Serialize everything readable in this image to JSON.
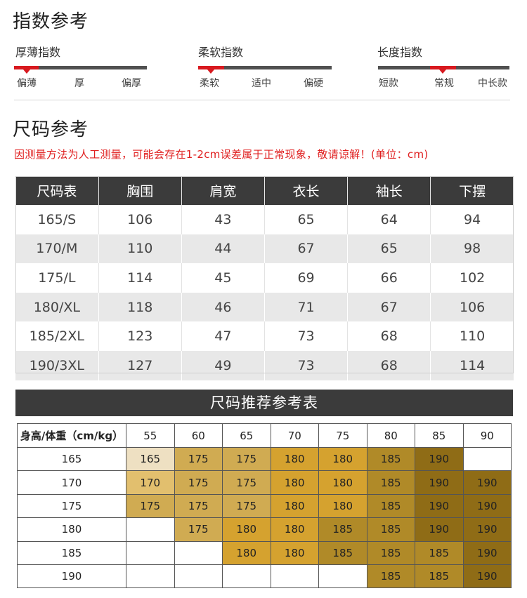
{
  "index_section": {
    "title": "指数参考",
    "groups": [
      {
        "label": "厚薄指数",
        "options": [
          "偏薄",
          "厚",
          "偏厚"
        ],
        "selected": "偏薄"
      },
      {
        "label": "柔软指数",
        "options": [
          "柔软",
          "适中",
          "偏硬"
        ],
        "selected": "柔软"
      },
      {
        "label": "长度指数",
        "options": [
          "短款",
          "常规",
          "中长款"
        ],
        "selected": "常规"
      }
    ]
  },
  "size_section": {
    "title": "尺码参考",
    "note": "因测量方法为人工测量，可能会存在1-2cm误差属于正常现象，敬请谅解！(单位：cm)"
  },
  "size_table": {
    "headers": [
      "尺码表",
      "胸围",
      "肩宽",
      "衣长",
      "袖长",
      "下摆"
    ],
    "rows": [
      [
        "165/S",
        "106",
        "43",
        "65",
        "64",
        "94"
      ],
      [
        "170/M",
        "110",
        "44",
        "67",
        "65",
        "98"
      ],
      [
        "175/L",
        "114",
        "45",
        "69",
        "66",
        "102"
      ],
      [
        "180/XL",
        "118",
        "46",
        "71",
        "67",
        "106"
      ],
      [
        "185/2XL",
        "123",
        "47",
        "73",
        "68",
        "110"
      ],
      [
        "190/3XL",
        "127",
        "49",
        "73",
        "68",
        "114"
      ]
    ]
  },
  "recommend": {
    "title": "尺码推荐参考表",
    "corner": "身高/体重（cm/kg）",
    "weights": [
      "55",
      "60",
      "65",
      "70",
      "75",
      "80",
      "85",
      "90"
    ],
    "heights": [
      "165",
      "170",
      "175",
      "180",
      "185",
      "190"
    ],
    "cells": [
      [
        "165",
        "175",
        "175",
        "180",
        "180",
        "185",
        "190",
        ""
      ],
      [
        "170",
        "175",
        "175",
        "180",
        "180",
        "185",
        "190",
        "190"
      ],
      [
        "175",
        "175",
        "175",
        "180",
        "180",
        "185",
        "190",
        "190"
      ],
      [
        "",
        "175",
        "180",
        "180",
        "185",
        "185",
        "190",
        "190"
      ],
      [
        "",
        "",
        "180",
        "180",
        "185",
        "185",
        "185",
        "190"
      ],
      [
        "",
        "",
        "",
        "",
        "",
        "185",
        "185",
        "190"
      ]
    ],
    "colors": {
      "165": "#eee0c2",
      "170": "#e2bf6e",
      "175": "#d0ab52",
      "180": "#d5a22f",
      "185": "#b08a28",
      "190": "#8f6c16"
    }
  },
  "accent_color": "#d8191f"
}
